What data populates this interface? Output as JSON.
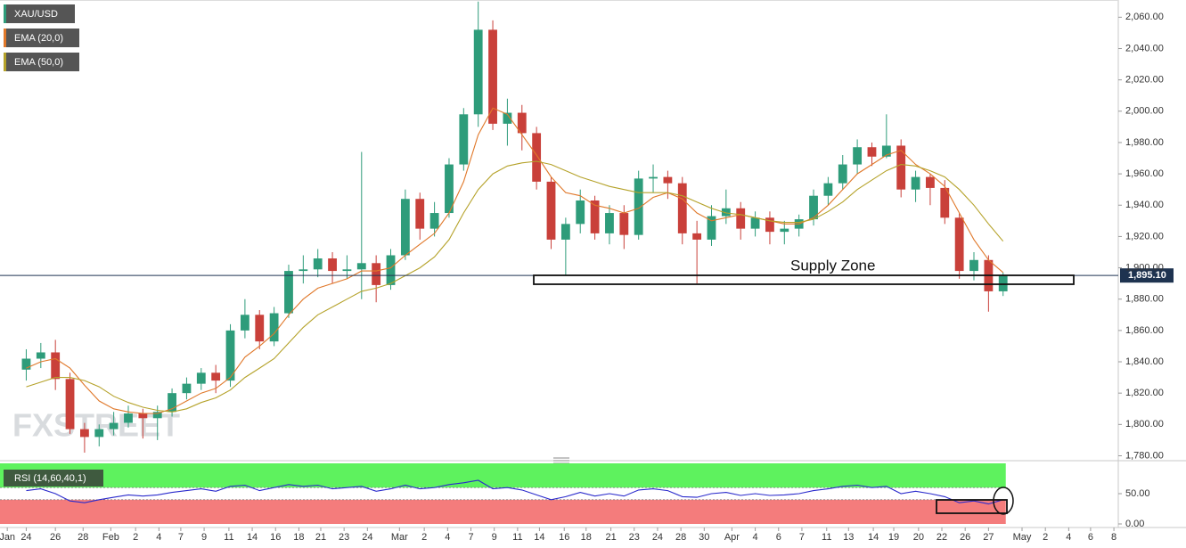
{
  "chart_data": [
    {
      "type": "candlestick",
      "name": "XAU/USD",
      "watermark": "FXSTREET",
      "annotation": "Supply Zone",
      "up_color": "#2e9c7a",
      "down_color": "#c9403a",
      "candles": {
        "open": [
          1835,
          1842,
          1846,
          1829,
          1797,
          1792,
          1797,
          1801,
          1807,
          1804,
          1808,
          1820,
          1826,
          1833,
          1828,
          1860,
          1870,
          1853,
          1871,
          1898,
          1899,
          1906,
          1898,
          1899,
          1903,
          1889,
          1908,
          1944,
          1925,
          1935,
          1966,
          1998,
          2052,
          1992,
          1999,
          1986,
          1955,
          1918,
          1928,
          1943,
          1922,
          1935,
          1921,
          1957,
          1958,
          1954,
          1922,
          1918,
          1933,
          1938,
          1925,
          1932,
          1923,
          1925,
          1931,
          1946,
          1954,
          1966,
          1977,
          1971,
          1978,
          1950,
          1958,
          1951,
          1932,
          1898,
          1905,
          1885
        ],
        "high": [
          1848,
          1852,
          1854,
          1833,
          1801,
          1800,
          1808,
          1812,
          1810,
          1812,
          1823,
          1830,
          1836,
          1838,
          1864,
          1880,
          1873,
          1875,
          1902,
          1908,
          1912,
          1910,
          1908,
          1974,
          1908,
          1912,
          1950,
          1948,
          1942,
          1970,
          2002,
          2070,
          2058,
          2008,
          2004,
          1990,
          1958,
          1932,
          1950,
          1946,
          1940,
          1940,
          1962,
          1966,
          1962,
          1958,
          1930,
          1940,
          1950,
          1942,
          1936,
          1936,
          1930,
          1934,
          1950,
          1958,
          1972,
          1982,
          1980,
          1998,
          1982,
          1962,
          1960,
          1956,
          1935,
          1910,
          1908,
          1897
        ],
        "low": [
          1828,
          1836,
          1822,
          1794,
          1782,
          1786,
          1793,
          1798,
          1791,
          1790,
          1805,
          1816,
          1822,
          1820,
          1824,
          1855,
          1848,
          1850,
          1868,
          1890,
          1894,
          1890,
          1893,
          1880,
          1878,
          1886,
          1905,
          1918,
          1920,
          1932,
          1962,
          1990,
          1988,
          1978,
          1975,
          1950,
          1912,
          1895,
          1922,
          1918,
          1915,
          1912,
          1918,
          1948,
          1944,
          1915,
          1890,
          1914,
          1928,
          1918,
          1920,
          1915,
          1915,
          1920,
          1927,
          1940,
          1950,
          1960,
          1965,
          1970,
          1945,
          1942,
          1940,
          1928,
          1893,
          1892,
          1872,
          1882
        ],
        "close": [
          1842,
          1846,
          1829,
          1797,
          1792,
          1797,
          1801,
          1807,
          1804,
          1808,
          1820,
          1826,
          1833,
          1828,
          1860,
          1870,
          1853,
          1871,
          1898,
          1899,
          1906,
          1898,
          1899,
          1903,
          1889,
          1908,
          1944,
          1925,
          1935,
          1966,
          1998,
          2052,
          1992,
          1999,
          1986,
          1955,
          1918,
          1928,
          1943,
          1922,
          1935,
          1921,
          1957,
          1958,
          1954,
          1922,
          1918,
          1933,
          1938,
          1925,
          1932,
          1923,
          1925,
          1931,
          1946,
          1954,
          1966,
          1977,
          1971,
          1978,
          1950,
          1958,
          1951,
          1932,
          1898,
          1905,
          1885,
          1895
        ]
      },
      "series": [
        {
          "name": "EMA (20,0)",
          "color": "#e0782a",
          "values": [
            1836,
            1840,
            1842,
            1836,
            1825,
            1815,
            1810,
            1808,
            1807,
            1807,
            1810,
            1815,
            1820,
            1823,
            1830,
            1843,
            1850,
            1858,
            1870,
            1880,
            1887,
            1890,
            1893,
            1898,
            1898,
            1900,
            1908,
            1915,
            1922,
            1935,
            1955,
            1985,
            2002,
            1998,
            1985,
            1972,
            1958,
            1948,
            1946,
            1940,
            1938,
            1935,
            1938,
            1945,
            1948,
            1944,
            1935,
            1930,
            1932,
            1934,
            1932,
            1930,
            1928,
            1928,
            1932,
            1940,
            1950,
            1960,
            1966,
            1972,
            1975,
            1966,
            1960,
            1952,
            1935,
            1918,
            1905,
            1897
          ]
        },
        {
          "name": "EMA (50,0)",
          "color": "#b5a22a",
          "values": [
            1824,
            1827,
            1830,
            1830,
            1828,
            1824,
            1818,
            1814,
            1811,
            1809,
            1808,
            1810,
            1814,
            1817,
            1822,
            1830,
            1836,
            1842,
            1852,
            1862,
            1870,
            1875,
            1880,
            1885,
            1887,
            1890,
            1895,
            1900,
            1907,
            1918,
            1935,
            1950,
            1960,
            1965,
            1967,
            1968,
            1966,
            1962,
            1958,
            1955,
            1952,
            1950,
            1948,
            1948,
            1948,
            1946,
            1942,
            1938,
            1935,
            1934,
            1932,
            1930,
            1929,
            1929,
            1931,
            1936,
            1942,
            1950,
            1956,
            1962,
            1966,
            1965,
            1962,
            1958,
            1950,
            1940,
            1928,
            1917
          ]
        }
      ],
      "last_price": {
        "value": 1895.1,
        "label": "1,895.10"
      },
      "xlim": [
        -1.8,
        74.9
      ],
      "xticks": [
        {
          "value": -1.3,
          "label": "Jan"
        },
        {
          "value": 0,
          "label": "24"
        },
        {
          "value": 2,
          "label": "26"
        },
        {
          "value": 3.9,
          "label": "28"
        },
        {
          "value": 5.8,
          "label": "Feb"
        },
        {
          "value": 7.5,
          "label": "2"
        },
        {
          "value": 9.1,
          "label": "4"
        },
        {
          "value": 10.6,
          "label": "7"
        },
        {
          "value": 12.2,
          "label": "9"
        },
        {
          "value": 13.9,
          "label": "11"
        },
        {
          "value": 15.5,
          "label": "14"
        },
        {
          "value": 17.1,
          "label": "16"
        },
        {
          "value": 18.7,
          "label": "18"
        },
        {
          "value": 20.2,
          "label": "21"
        },
        {
          "value": 21.8,
          "label": "23"
        },
        {
          "value": 23.4,
          "label": "24"
        },
        {
          "value": 25.6,
          "label": "Mar"
        },
        {
          "value": 27.3,
          "label": "2"
        },
        {
          "value": 28.9,
          "label": "4"
        },
        {
          "value": 30.5,
          "label": "7"
        },
        {
          "value": 32.1,
          "label": "9"
        },
        {
          "value": 33.7,
          "label": "11"
        },
        {
          "value": 35.2,
          "label": "14"
        },
        {
          "value": 36.9,
          "label": "16"
        },
        {
          "value": 38.4,
          "label": "18"
        },
        {
          "value": 40.1,
          "label": "21"
        },
        {
          "value": 41.7,
          "label": "23"
        },
        {
          "value": 43.3,
          "label": "24"
        },
        {
          "value": 44.9,
          "label": "28"
        },
        {
          "value": 46.5,
          "label": "30"
        },
        {
          "value": 48.4,
          "label": "Apr"
        },
        {
          "value": 50,
          "label": "4"
        },
        {
          "value": 51.6,
          "label": "6"
        },
        {
          "value": 53.2,
          "label": "7"
        },
        {
          "value": 54.9,
          "label": "11"
        },
        {
          "value": 56.4,
          "label": "13"
        },
        {
          "value": 58.1,
          "label": "14"
        },
        {
          "value": 59.5,
          "label": "19"
        },
        {
          "value": 61.2,
          "label": "20"
        },
        {
          "value": 62.8,
          "label": "22"
        },
        {
          "value": 64.4,
          "label": "26"
        },
        {
          "value": 66,
          "label": "27"
        },
        {
          "value": 68.3,
          "label": "May"
        },
        {
          "value": 69.9,
          "label": "2"
        },
        {
          "value": 71.5,
          "label": "4"
        },
        {
          "value": 73,
          "label": "6"
        },
        {
          "value": 74.6,
          "label": "8"
        }
      ],
      "ylim": [
        1778,
        2071
      ],
      "yticks": [
        {
          "value": 1780,
          "label": "1,780.00"
        },
        {
          "value": 1800,
          "label": "1,800.00"
        },
        {
          "value": 1820,
          "label": "1,820.00"
        },
        {
          "value": 1840,
          "label": "1,840.00"
        },
        {
          "value": 1860,
          "label": "1,860.00"
        },
        {
          "value": 1880,
          "label": "1,880.00"
        },
        {
          "value": 1900,
          "label": "1,900.00"
        },
        {
          "value": 1920,
          "label": "1,920.00"
        },
        {
          "value": 1940,
          "label": "1,940.00"
        },
        {
          "value": 1960,
          "label": "1,960.00"
        },
        {
          "value": 1980,
          "label": "1,980.00"
        },
        {
          "value": 2000,
          "label": "2,000.00"
        },
        {
          "value": 2020,
          "label": "2,020.00"
        },
        {
          "value": 2040,
          "label": "2,040.00"
        },
        {
          "value": 2060,
          "label": "2,060.00"
        }
      ]
    },
    {
      "type": "line",
      "name": "RSI (14,60,40,1)",
      "upper_band": {
        "range": [
          60,
          100
        ],
        "color": "#5ef25e"
      },
      "lower_band": {
        "range": [
          0,
          40
        ],
        "color": "#f47c7c"
      },
      "series": [
        {
          "name": "RSI",
          "color": "#2a2acc",
          "values": [
            55,
            58,
            50,
            38,
            35,
            40,
            44,
            48,
            46,
            48,
            52,
            55,
            58,
            54,
            62,
            64,
            55,
            60,
            65,
            62,
            64,
            58,
            60,
            62,
            54,
            58,
            64,
            58,
            60,
            65,
            68,
            72,
            58,
            60,
            56,
            48,
            40,
            45,
            52,
            46,
            50,
            46,
            56,
            58,
            55,
            45,
            44,
            50,
            52,
            47,
            50,
            47,
            48,
            50,
            55,
            58,
            62,
            64,
            60,
            62,
            50,
            54,
            50,
            45,
            35,
            38,
            33,
            40
          ]
        }
      ],
      "ylim": [
        0,
        100
      ],
      "yticks": [
        {
          "value": 0,
          "label": "0.00"
        },
        {
          "value": 50,
          "label": "50.00"
        }
      ]
    }
  ]
}
